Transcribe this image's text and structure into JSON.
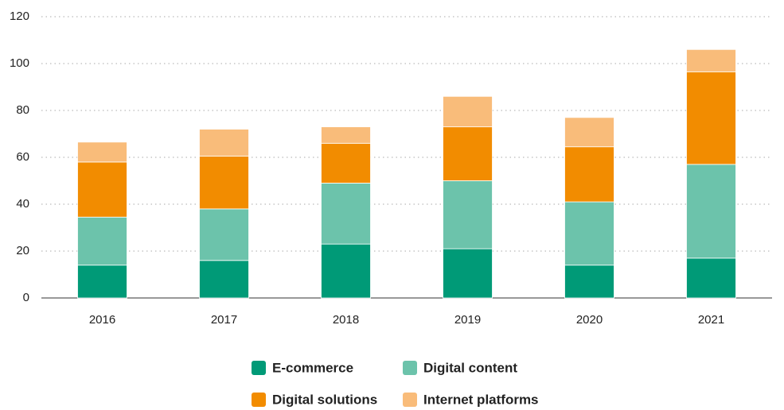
{
  "chart_data": {
    "type": "stacked_bar",
    "categories": [
      "2016",
      "2017",
      "2018",
      "2019",
      "2020",
      "2021"
    ],
    "series": [
      {
        "name": "E-commerce",
        "color": "#009a77",
        "values": [
          14,
          16,
          23,
          21,
          14,
          17
        ]
      },
      {
        "name": "Digital content",
        "color": "#6cc3ab",
        "values": [
          20.5,
          22,
          26,
          29,
          27,
          40
        ]
      },
      {
        "name": "Digital solutions",
        "color": "#f28c00",
        "values": [
          23.5,
          22.5,
          17,
          23,
          23.5,
          39.5
        ]
      },
      {
        "name": "Internet platforms",
        "color": "#f9bc7a",
        "values": [
          8.5,
          11.5,
          7,
          13,
          12.5,
          9.5
        ]
      }
    ],
    "ylim": [
      0,
      120
    ],
    "yticks": [
      0,
      20,
      40,
      60,
      80,
      100,
      120
    ],
    "grid": true,
    "legend": "bottom"
  }
}
